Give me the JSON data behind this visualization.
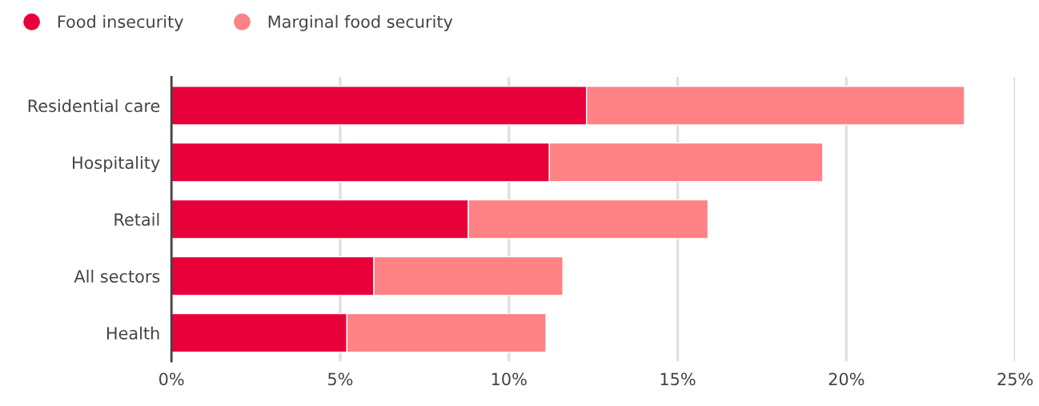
{
  "chart_data": {
    "type": "bar",
    "orientation": "horizontal",
    "stacked": true,
    "categories": [
      "Residential care",
      "Hospitality",
      "Retail",
      "All sectors",
      "Health"
    ],
    "series": [
      {
        "name": "Food insecurity",
        "color": "#e8003a",
        "values": [
          12.3,
          11.2,
          8.8,
          6.0,
          5.2
        ]
      },
      {
        "name": "Marginal food security",
        "color": "#ff8285",
        "values": [
          11.2,
          8.1,
          7.1,
          5.6,
          5.9
        ]
      }
    ],
    "xlim": [
      0,
      25
    ],
    "xticks": [
      {
        "value": 0,
        "label": "0%"
      },
      {
        "value": 5,
        "label": "5%"
      },
      {
        "value": 10,
        "label": "10%"
      },
      {
        "value": 15,
        "label": "15%"
      },
      {
        "value": 20,
        "label": "20%"
      },
      {
        "value": 25,
        "label": "25%"
      }
    ],
    "grid": "x",
    "legend": "top left"
  }
}
